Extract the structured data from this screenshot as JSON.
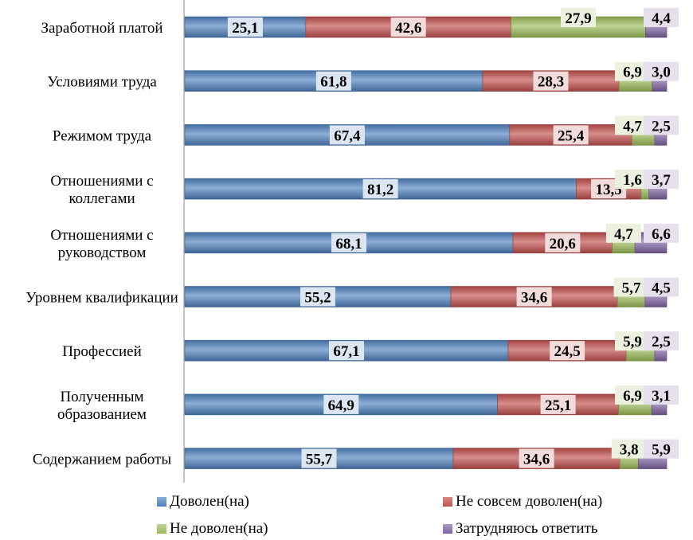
{
  "chart_data": {
    "type": "bar",
    "orientation": "horizontal",
    "stacked": true,
    "categories": [
      [
        "Заработной платой"
      ],
      [
        "Условиями труда"
      ],
      [
        "Режимом труда"
      ],
      [
        "Отношениями с",
        "коллегами"
      ],
      [
        "Отношениями с",
        "руководством"
      ],
      [
        "Уровнем квалификации"
      ],
      [
        "Профессией"
      ],
      [
        "Полученным",
        "образованием"
      ],
      [
        "Содержанием работы"
      ]
    ],
    "series": [
      {
        "name": "Доволен(на)",
        "color": "#4f81bd",
        "label_bg": "#dce6f2",
        "values": [
          25.1,
          61.8,
          67.4,
          81.2,
          68.1,
          55.2,
          67.1,
          64.9,
          55.7
        ],
        "labels": [
          "25,1",
          "61,8",
          "67,4",
          "81,2",
          "68,1",
          "55,2",
          "67,1",
          "64,9",
          "55,7"
        ]
      },
      {
        "name": "Не совсем доволен(на)",
        "color": "#c0504d",
        "label_bg": "#f2dcdb",
        "values": [
          42.6,
          28.3,
          25.4,
          13.5,
          20.6,
          34.6,
          24.5,
          25.1,
          34.6
        ],
        "labels": [
          "42,6",
          "28,3",
          "25,4",
          "13,5",
          "20,6",
          "34,6",
          "24,5",
          "25,1",
          "34,6"
        ]
      },
      {
        "name": "Не доволен(на)",
        "color": "#9bbb59",
        "label_bg": "#ebf1de",
        "values": [
          27.9,
          6.9,
          4.7,
          1.6,
          4.7,
          5.7,
          5.9,
          6.9,
          3.8
        ],
        "labels": [
          "27,9",
          "6,9",
          "4,7",
          "1,6",
          "4,7",
          "5,7",
          "5,9",
          "6,9",
          "3,8"
        ]
      },
      {
        "name": "Затрудняюсь ответить",
        "color": "#8064a2",
        "label_bg": "#e5e0ec",
        "values": [
          4.4,
          3.0,
          2.5,
          3.7,
          6.6,
          4.5,
          2.5,
          3.1,
          5.9
        ],
        "labels": [
          "4,4",
          "3,0",
          "2,5",
          "3,7",
          "6,6",
          "4,5",
          "2,5",
          "3,1",
          "5,9"
        ]
      }
    ],
    "xlim": [
      0,
      100
    ],
    "grid": false,
    "legend_position": "bottom"
  }
}
